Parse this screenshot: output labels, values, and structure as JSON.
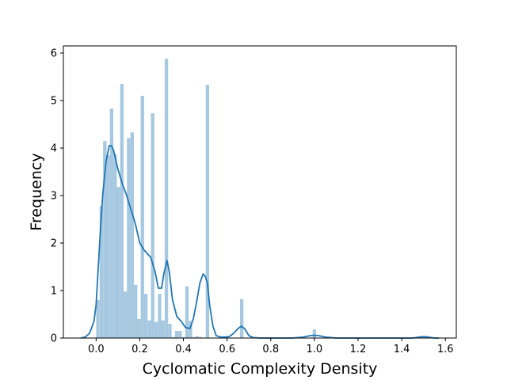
{
  "chart_data": {
    "type": "bar",
    "title": "",
    "xlabel": "Cyclomatic Complexity Density",
    "ylabel": "Frequency",
    "xlim": [
      -0.15,
      1.65
    ],
    "ylim": [
      0,
      6.15
    ],
    "xticks": [
      0.0,
      0.2,
      0.4,
      0.6,
      0.8,
      1.0,
      1.2,
      1.4,
      1.6
    ],
    "xtick_labels": [
      "0.0",
      "0.2",
      "0.4",
      "0.6",
      "0.8",
      "1.0",
      "1.2",
      "1.4",
      "1.6"
    ],
    "yticks": [
      0,
      1,
      2,
      3,
      4,
      5,
      6
    ],
    "ytick_labels": [
      "0",
      "1",
      "2",
      "3",
      "4",
      "5",
      "6"
    ],
    "grid": false,
    "bar_width": 0.0157,
    "histogram": {
      "color": "#a6c8e0",
      "x": [
        0.008,
        0.024,
        0.04,
        0.055,
        0.071,
        0.087,
        0.102,
        0.118,
        0.134,
        0.149,
        0.165,
        0.181,
        0.196,
        0.212,
        0.228,
        0.244,
        0.259,
        0.275,
        0.291,
        0.306,
        0.322,
        0.338,
        0.353,
        0.369,
        0.385,
        0.401,
        0.416,
        0.432,
        0.448,
        0.463,
        0.479,
        0.495,
        0.51,
        0.667,
        0.75,
        1.0
      ],
      "values": [
        0.8,
        2.78,
        4.15,
        3.85,
        4.83,
        3.87,
        3.18,
        5.35,
        0.98,
        4.21,
        4.33,
        1.12,
        0.4,
        5.1,
        0.93,
        0.37,
        4.73,
        0.34,
        0.93,
        0.37,
        5.88,
        0.3,
        0.02,
        0.15,
        0.15,
        0.02,
        1.09,
        0.36,
        0.02,
        0.04,
        0.02,
        0.0,
        5.33,
        0.82,
        0.01,
        0.18
      ]
    },
    "kde": {
      "color": "#1f77b4",
      "x": [
        -0.07,
        -0.05,
        -0.03,
        -0.01,
        0.0,
        0.01,
        0.02,
        0.03,
        0.045,
        0.06,
        0.07,
        0.08,
        0.09,
        0.1,
        0.12,
        0.14,
        0.16,
        0.18,
        0.2,
        0.22,
        0.25,
        0.27,
        0.285,
        0.3,
        0.31,
        0.325,
        0.335,
        0.35,
        0.37,
        0.39,
        0.41,
        0.43,
        0.445,
        0.46,
        0.475,
        0.49,
        0.5,
        0.51,
        0.52,
        0.535,
        0.55,
        0.57,
        0.59,
        0.61,
        0.63,
        0.65,
        0.665,
        0.68,
        0.7,
        0.72,
        0.75,
        0.8,
        0.85,
        0.9,
        0.95,
        0.98,
        1.0,
        1.02,
        1.05,
        1.1,
        1.2,
        1.3,
        1.4,
        1.45,
        1.48,
        1.5,
        1.52,
        1.55,
        1.57
      ],
      "values": [
        0.0,
        0.02,
        0.1,
        0.35,
        0.7,
        1.5,
        2.3,
        3.0,
        3.7,
        4.05,
        4.05,
        3.95,
        3.75,
        3.55,
        3.25,
        3.0,
        2.7,
        2.4,
        2.0,
        1.85,
        1.7,
        1.4,
        1.05,
        1.05,
        1.35,
        1.63,
        1.4,
        0.8,
        0.45,
        0.35,
        0.22,
        0.2,
        0.4,
        0.75,
        1.15,
        1.35,
        1.3,
        1.15,
        0.7,
        0.25,
        0.05,
        0.02,
        0.02,
        0.03,
        0.1,
        0.2,
        0.25,
        0.2,
        0.05,
        0.01,
        0.0,
        0.0,
        0.0,
        0.0,
        0.02,
        0.05,
        0.06,
        0.05,
        0.02,
        0.0,
        0.0,
        0.0,
        0.0,
        0.0,
        0.02,
        0.03,
        0.02,
        0.0,
        0.0
      ]
    }
  }
}
